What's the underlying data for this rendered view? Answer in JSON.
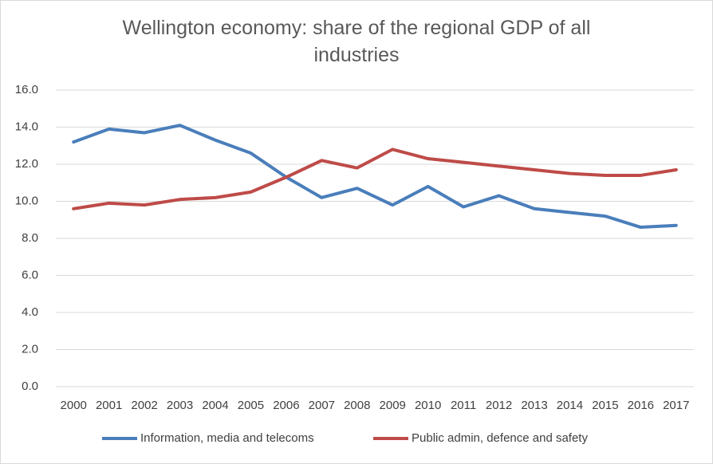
{
  "chart_data": {
    "type": "line",
    "title": "Wellington economy: share of the regional GDP of all industries",
    "categories": [
      "2000",
      "2001",
      "2002",
      "2003",
      "2004",
      "2005",
      "2006",
      "2007",
      "2008",
      "2009",
      "2010",
      "2011",
      "2012",
      "2013",
      "2014",
      "2015",
      "2016",
      "2017"
    ],
    "series": [
      {
        "name": "Information, media and telecoms",
        "color": "#4a7ebb",
        "values": [
          13.2,
          13.9,
          13.7,
          14.1,
          13.3,
          12.6,
          11.3,
          10.2,
          10.7,
          9.8,
          10.8,
          9.7,
          10.3,
          9.6,
          9.4,
          9.2,
          8.6,
          8.7
        ]
      },
      {
        "name": "Public admin, defence and safety",
        "color": "#be4b48",
        "values": [
          9.6,
          9.9,
          9.8,
          10.1,
          10.2,
          10.5,
          11.3,
          12.2,
          11.8,
          12.8,
          12.3,
          12.1,
          11.9,
          11.7,
          11.5,
          11.4,
          11.4,
          11.7
        ]
      }
    ],
    "ylim": [
      0,
      16
    ],
    "yticks": [
      {
        "value": 0,
        "label": "0.0"
      },
      {
        "value": 2,
        "label": "2.0"
      },
      {
        "value": 4,
        "label": "4.0"
      },
      {
        "value": 6,
        "label": "6.0"
      },
      {
        "value": 8,
        "label": "8.0"
      },
      {
        "value": 10,
        "label": "10.0"
      },
      {
        "value": 12,
        "label": "12.0"
      },
      {
        "value": 14,
        "label": "14.0"
      },
      {
        "value": 16,
        "label": "16.0"
      }
    ],
    "grid": true,
    "legend": "bottom"
  }
}
